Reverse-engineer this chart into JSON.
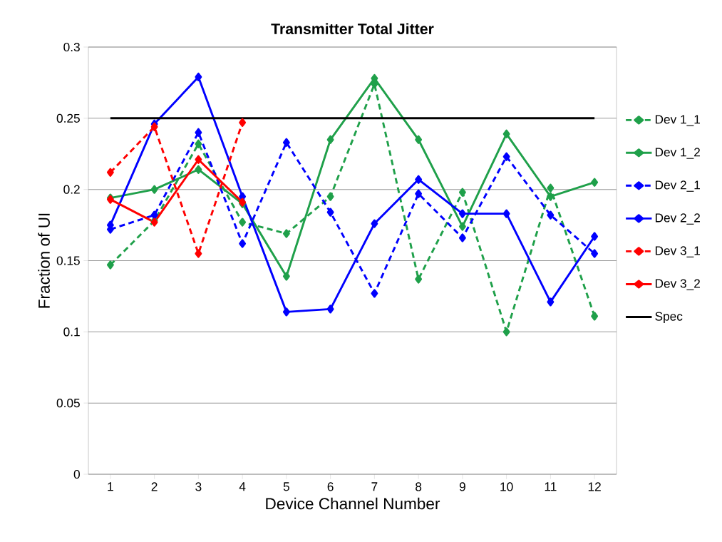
{
  "chart_data": {
    "type": "line",
    "title": "Transmitter Total Jitter",
    "xlabel": "Device Channel Number",
    "ylabel": "Fraction of UI",
    "categories": [
      "1",
      "2",
      "3",
      "4",
      "5",
      "6",
      "7",
      "8",
      "9",
      "10",
      "11",
      "12"
    ],
    "series": [
      {
        "name": "Dev 1_1",
        "color": "#1fa04a",
        "line_style": "dashed",
        "marker": "diamond",
        "values": [
          0.147,
          0.178,
          0.232,
          0.177,
          0.169,
          0.195,
          0.274,
          0.137,
          0.198,
          0.1,
          0.201,
          0.111
        ]
      },
      {
        "name": "Dev 1_2",
        "color": "#1fa04a",
        "line_style": "solid",
        "marker": "diamond",
        "values": [
          0.194,
          0.2,
          0.214,
          0.19,
          0.139,
          0.235,
          0.278,
          0.235,
          0.174,
          0.239,
          0.195,
          0.205
        ]
      },
      {
        "name": "Dev 2_1",
        "color": "#0000ff",
        "line_style": "dashed",
        "marker": "diamond",
        "values": [
          0.172,
          0.182,
          0.24,
          0.162,
          0.233,
          0.184,
          0.127,
          0.197,
          0.166,
          0.223,
          0.182,
          0.155
        ]
      },
      {
        "name": "Dev 2_2",
        "color": "#0000ff",
        "line_style": "solid",
        "marker": "diamond",
        "values": [
          0.175,
          0.246,
          0.279,
          0.195,
          0.114,
          0.116,
          0.176,
          0.207,
          0.183,
          0.183,
          0.121,
          0.167
        ]
      },
      {
        "name": "Dev 3_1",
        "color": "#ff0000",
        "line_style": "dashed",
        "marker": "diamond",
        "values": [
          0.212,
          0.244,
          0.155,
          0.247,
          null,
          null,
          null,
          null,
          null,
          null,
          null,
          null
        ]
      },
      {
        "name": "Dev 3_2",
        "color": "#ff0000",
        "line_style": "solid",
        "marker": "diamond",
        "values": [
          0.193,
          0.177,
          0.221,
          0.191,
          null,
          null,
          null,
          null,
          null,
          null,
          null,
          null
        ]
      },
      {
        "name": "Spec",
        "color": "#000000",
        "line_style": "solid",
        "marker": "none",
        "values": [
          0.25,
          0.25,
          0.25,
          0.25,
          0.25,
          0.25,
          0.25,
          0.25,
          0.25,
          0.25,
          0.25,
          0.25
        ]
      }
    ],
    "ylim": [
      0,
      0.3
    ],
    "yticks": [
      0,
      0.05,
      0.1,
      0.15,
      0.2,
      0.25,
      0.3
    ],
    "grid": "y",
    "legend": "right"
  }
}
